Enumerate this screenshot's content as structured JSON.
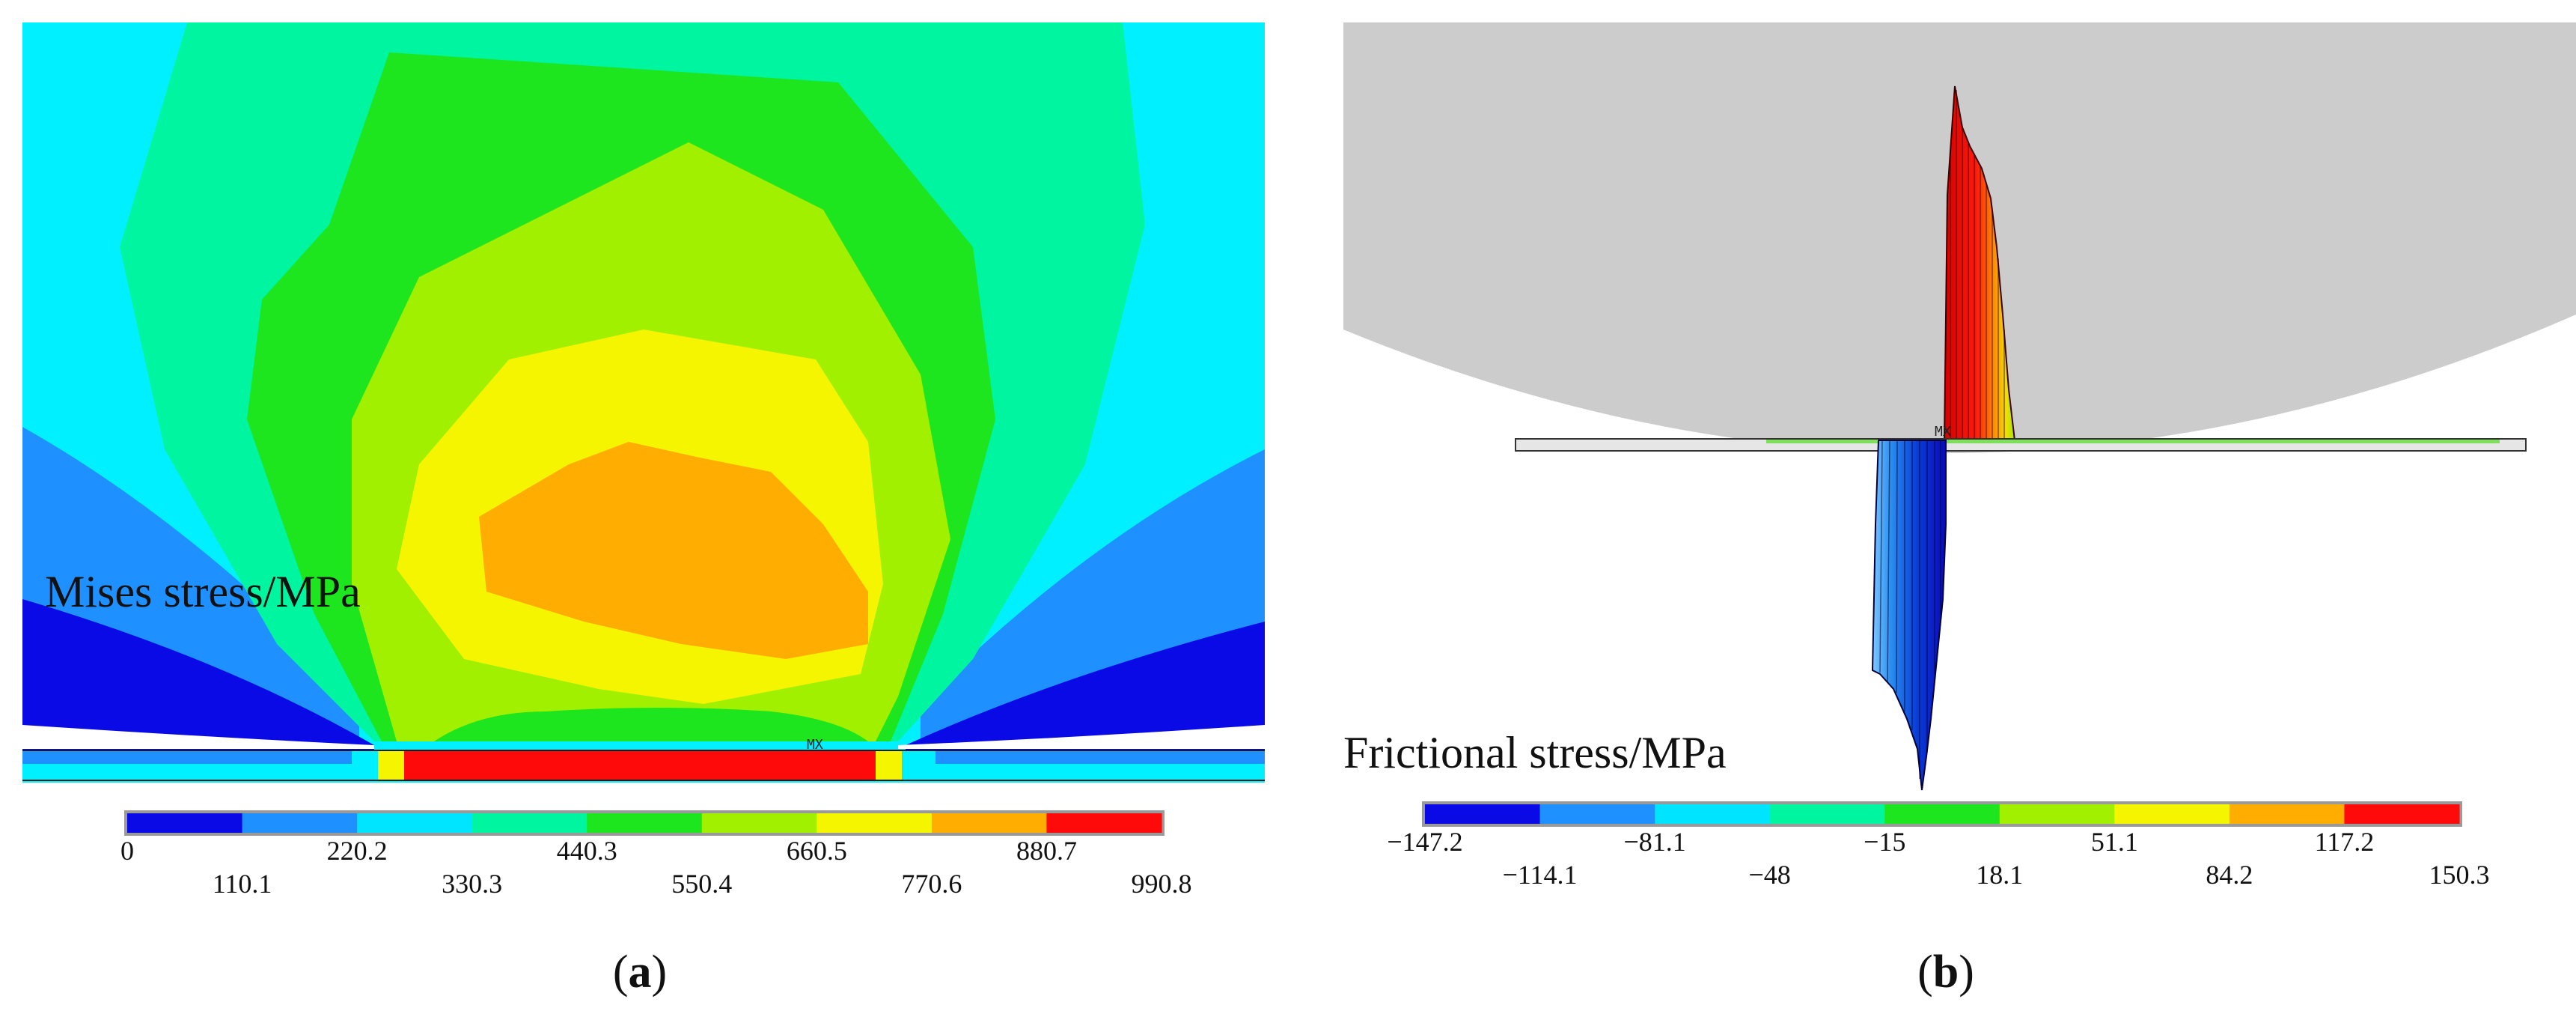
{
  "panel_a": {
    "title": "Mises stress/MPa",
    "marker": "MX",
    "tag_open": "(",
    "tag_letter": "a",
    "tag_close": ")",
    "legend_colors": [
      "#0a0ae6",
      "#1e90ff",
      "#00e5ff",
      "#00f5a0",
      "#1ee61e",
      "#a0f000",
      "#f5f500",
      "#ffad00",
      "#ff0a0a"
    ],
    "ticks_upper": [
      "0",
      "220.2",
      "440.3",
      "660.5",
      "880.7"
    ],
    "ticks_lower": [
      "110.1",
      "330.3",
      "550.4",
      "770.6",
      "990.8"
    ]
  },
  "panel_b": {
    "title": "Frictional stress/MPa",
    "marker": "MX",
    "tag_open": "(",
    "tag_letter": "b",
    "tag_close": ")",
    "legend_colors": [
      "#0a0ae6",
      "#1e90ff",
      "#00e5ff",
      "#00f5a0",
      "#1ee61e",
      "#a0f000",
      "#f5f500",
      "#ffad00",
      "#ff0a0a"
    ],
    "ticks_upper": [
      "−147.2",
      "−81.1",
      "−15",
      "51.1",
      "117.2"
    ],
    "ticks_lower": [
      "−114.1",
      "−48",
      "18.1",
      "84.2",
      "150.3"
    ]
  }
}
